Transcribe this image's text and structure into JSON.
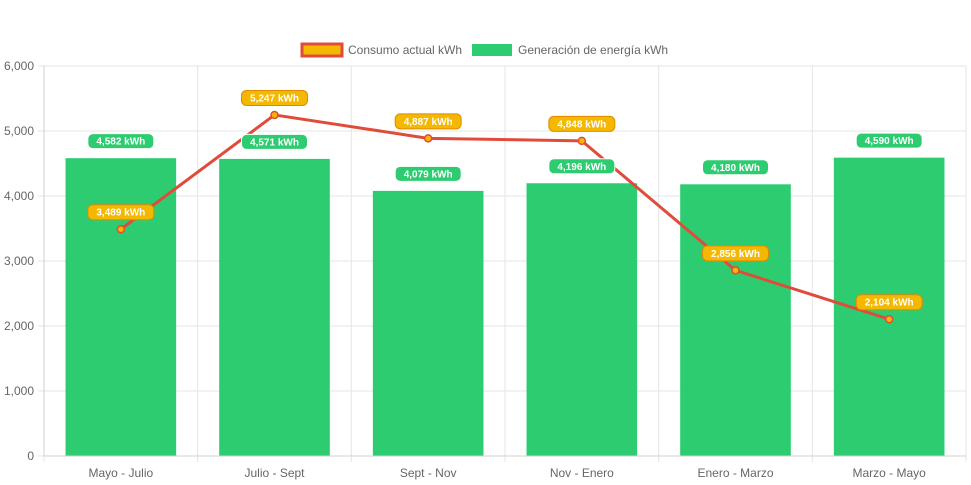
{
  "chart_data": {
    "type": "bar",
    "categories": [
      "Mayo - Julio",
      "Julio - Sept",
      "Sept - Nov",
      "Nov - Enero",
      "Enero - Marzo",
      "Marzo - Mayo"
    ],
    "series": [
      {
        "name": "Consumo actual kWh",
        "type": "line",
        "values": [
          3489,
          5247,
          4887,
          4848,
          2856,
          2104
        ],
        "labels": [
          "3,489 kWh",
          "5,247 kWh",
          "4,887 kWh",
          "4,848 kWh",
          "2,856 kWh",
          "2,104 kWh"
        ],
        "color": "#e04b3a",
        "label_color": "#f5b800"
      },
      {
        "name": "Generación de energía kWh",
        "type": "bar",
        "values": [
          4582,
          4571,
          4079,
          4196,
          4180,
          4590
        ],
        "labels": [
          "4,582 kWh",
          "4,571 kWh",
          "4,079 kWh",
          "4,196 kWh",
          "4,180 kWh",
          "4,590 kWh"
        ],
        "color": "#2ecc71"
      }
    ],
    "y_ticks": [
      "0",
      "1,000",
      "2,000",
      "3,000",
      "4,000",
      "5,000",
      "6,000"
    ],
    "ylim": [
      0,
      6000
    ],
    "grid": true,
    "legend_position": "top"
  }
}
